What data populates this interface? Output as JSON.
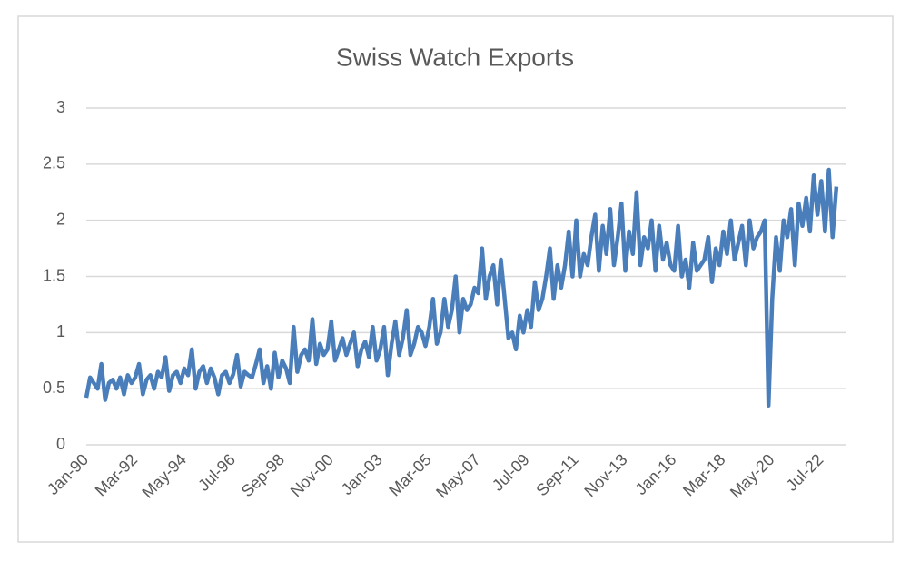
{
  "chart_data": {
    "type": "line",
    "title": "Swiss Watch Exports",
    "categories": [
      "Jan-90",
      null,
      null,
      null,
      null,
      null,
      null,
      null,
      null,
      null,
      null,
      null,
      null,
      "Mar-92",
      null,
      null,
      null,
      null,
      null,
      null,
      null,
      null,
      null,
      null,
      null,
      null,
      "May-94",
      null,
      null,
      null,
      null,
      null,
      null,
      null,
      null,
      null,
      null,
      null,
      null,
      "Jul-96",
      null,
      null,
      null,
      null,
      null,
      null,
      null,
      null,
      null,
      null,
      null,
      null,
      "Sep-98",
      null,
      null,
      null,
      null,
      null,
      null,
      null,
      null,
      null,
      null,
      null,
      null,
      "Nov-00",
      null,
      null,
      null,
      null,
      null,
      null,
      null,
      null,
      null,
      null,
      null,
      null,
      "Jan-03",
      null,
      null,
      null,
      null,
      null,
      null,
      null,
      null,
      null,
      null,
      null,
      null,
      "Mar-05",
      null,
      null,
      null,
      null,
      null,
      null,
      null,
      null,
      null,
      null,
      null,
      null,
      "May-07",
      null,
      null,
      null,
      null,
      null,
      null,
      null,
      null,
      null,
      null,
      null,
      null,
      "Jul-09",
      null,
      null,
      null,
      null,
      null,
      null,
      null,
      null,
      null,
      null,
      null,
      null,
      "Sep-11",
      null,
      null,
      null,
      null,
      null,
      null,
      null,
      null,
      null,
      null,
      null,
      null,
      "Nov-13",
      null,
      null,
      null,
      null,
      null,
      null,
      null,
      null,
      null,
      null,
      null,
      null,
      "Jan-16",
      null,
      null,
      null,
      null,
      null,
      null,
      null,
      null,
      null,
      null,
      null,
      null,
      "Mar-18",
      null,
      null,
      null,
      null,
      null,
      null,
      null,
      null,
      null,
      null,
      null,
      null,
      "May-20",
      null,
      null,
      null,
      null,
      null,
      null,
      null,
      null,
      null,
      null,
      null,
      null,
      "Jul-22",
      null,
      null,
      null,
      null
    ],
    "series": [
      {
        "color": "#4a7ebb",
        "values": [
          0.42,
          0.6,
          0.55,
          0.5,
          0.72,
          0.4,
          0.55,
          0.58,
          0.5,
          0.6,
          0.45,
          0.62,
          0.55,
          0.6,
          0.72,
          0.45,
          0.58,
          0.62,
          0.5,
          0.65,
          0.6,
          0.78,
          0.48,
          0.62,
          0.65,
          0.55,
          0.68,
          0.62,
          0.85,
          0.5,
          0.65,
          0.7,
          0.55,
          0.68,
          0.6,
          0.45,
          0.62,
          0.65,
          0.55,
          0.63,
          0.8,
          0.52,
          0.65,
          0.62,
          0.6,
          0.72,
          0.85,
          0.55,
          0.7,
          0.5,
          0.82,
          0.6,
          0.75,
          0.68,
          0.55,
          1.05,
          0.65,
          0.8,
          0.85,
          0.75,
          1.12,
          0.72,
          0.9,
          0.8,
          0.85,
          1.1,
          0.75,
          0.85,
          0.95,
          0.8,
          0.9,
          1.0,
          0.7,
          0.85,
          0.92,
          0.78,
          1.05,
          0.75,
          0.85,
          1.05,
          0.62,
          0.9,
          1.1,
          0.8,
          0.95,
          1.2,
          0.8,
          0.9,
          1.05,
          1.0,
          0.88,
          1.05,
          1.3,
          0.9,
          1.0,
          1.3,
          1.05,
          1.2,
          1.5,
          1.0,
          1.3,
          1.2,
          1.25,
          1.4,
          1.35,
          1.75,
          1.3,
          1.5,
          1.6,
          1.25,
          1.65,
          1.3,
          0.95,
          1.0,
          0.85,
          1.15,
          1.0,
          1.2,
          1.05,
          1.45,
          1.2,
          1.3,
          1.5,
          1.75,
          1.3,
          1.6,
          1.4,
          1.6,
          1.9,
          1.5,
          2.0,
          1.5,
          1.7,
          1.6,
          1.85,
          2.05,
          1.55,
          1.95,
          1.7,
          2.1,
          1.6,
          1.85,
          2.15,
          1.55,
          1.9,
          1.7,
          2.25,
          1.6,
          1.85,
          1.75,
          2.0,
          1.55,
          1.95,
          1.65,
          1.8,
          1.6,
          1.55,
          1.95,
          1.5,
          1.65,
          1.4,
          1.8,
          1.55,
          1.6,
          1.65,
          1.85,
          1.45,
          1.75,
          1.6,
          1.9,
          1.7,
          2.0,
          1.65,
          1.8,
          1.95,
          1.6,
          2.0,
          1.75,
          1.85,
          1.9,
          2.0,
          0.35,
          1.3,
          1.85,
          1.55,
          2.0,
          1.85,
          2.1,
          1.6,
          2.15,
          1.95,
          2.2,
          1.9,
          2.4,
          2.05,
          2.35,
          1.9,
          2.45,
          1.85,
          2.3
        ]
      }
    ],
    "ylim": [
      0,
      3
    ],
    "yticks": [
      0,
      0.5,
      1,
      1.5,
      2,
      2.5,
      3
    ],
    "grid": true
  }
}
